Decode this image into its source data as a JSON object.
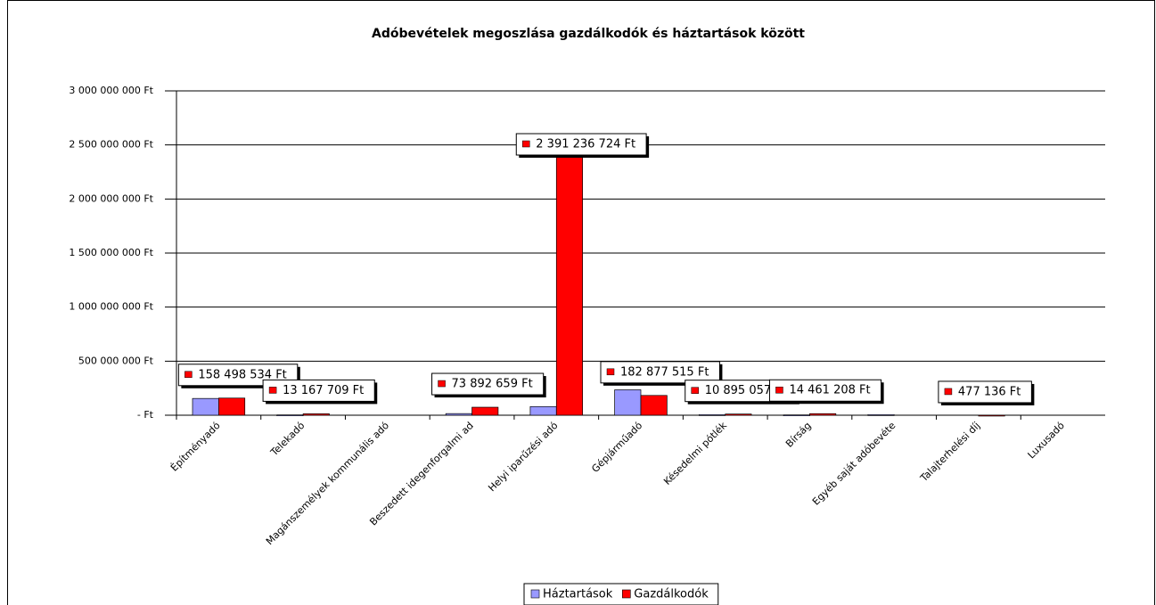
{
  "chart_data": {
    "type": "bar",
    "title": "Adóbevételek megoszlása gazdálkodók és háztartások között",
    "categories": [
      "Építményadó",
      "Telekadó",
      "Magánszemélyek kommunális adó",
      "Beszedett idegenforgalmi ad",
      "Helyi iparűzési adó",
      "Gépjárműadó",
      "Késedelmi pótlék",
      "Bírság",
      "Egyéb saját adóbevéte",
      "Talajterhelési díj",
      "Luxusadó"
    ],
    "series": [
      {
        "name": "Háztartások",
        "color": "#9999ff",
        "values": [
          155000000,
          3000000,
          null,
          15000000,
          80000000,
          235000000,
          5000000,
          3000000,
          5000000,
          null,
          null
        ]
      },
      {
        "name": "Gazdálkodók",
        "color": "#ff0000",
        "values": [
          158498534,
          13167709,
          null,
          73892659,
          2391236724,
          182877515,
          10895057,
          14461208,
          null,
          477136,
          null
        ],
        "value_labels": [
          "158 498 534 Ft",
          "13 167 709 Ft",
          null,
          "73 892 659 Ft",
          "2 391 236 724 Ft",
          "182 877 515 Ft",
          "10 895 057 Ft",
          "14 461 208 Ft",
          null,
          "477 136 Ft",
          null
        ]
      }
    ],
    "ylim": [
      0,
      3000000000
    ],
    "yticks": [
      {
        "value": 0,
        "label": "- Ft"
      },
      {
        "value": 500000000,
        "label": "500 000 000 Ft"
      },
      {
        "value": 1000000000,
        "label": "1 000 000 000 Ft"
      },
      {
        "value": 1500000000,
        "label": "1 500 000 000 Ft"
      },
      {
        "value": 2000000000,
        "label": "2 000 000 000 Ft"
      },
      {
        "value": 2500000000,
        "label": "2 500 000 000 Ft"
      },
      {
        "value": 3000000000,
        "label": "3 000 000 000 Ft"
      }
    ],
    "grid": true,
    "legend": "bottom"
  }
}
